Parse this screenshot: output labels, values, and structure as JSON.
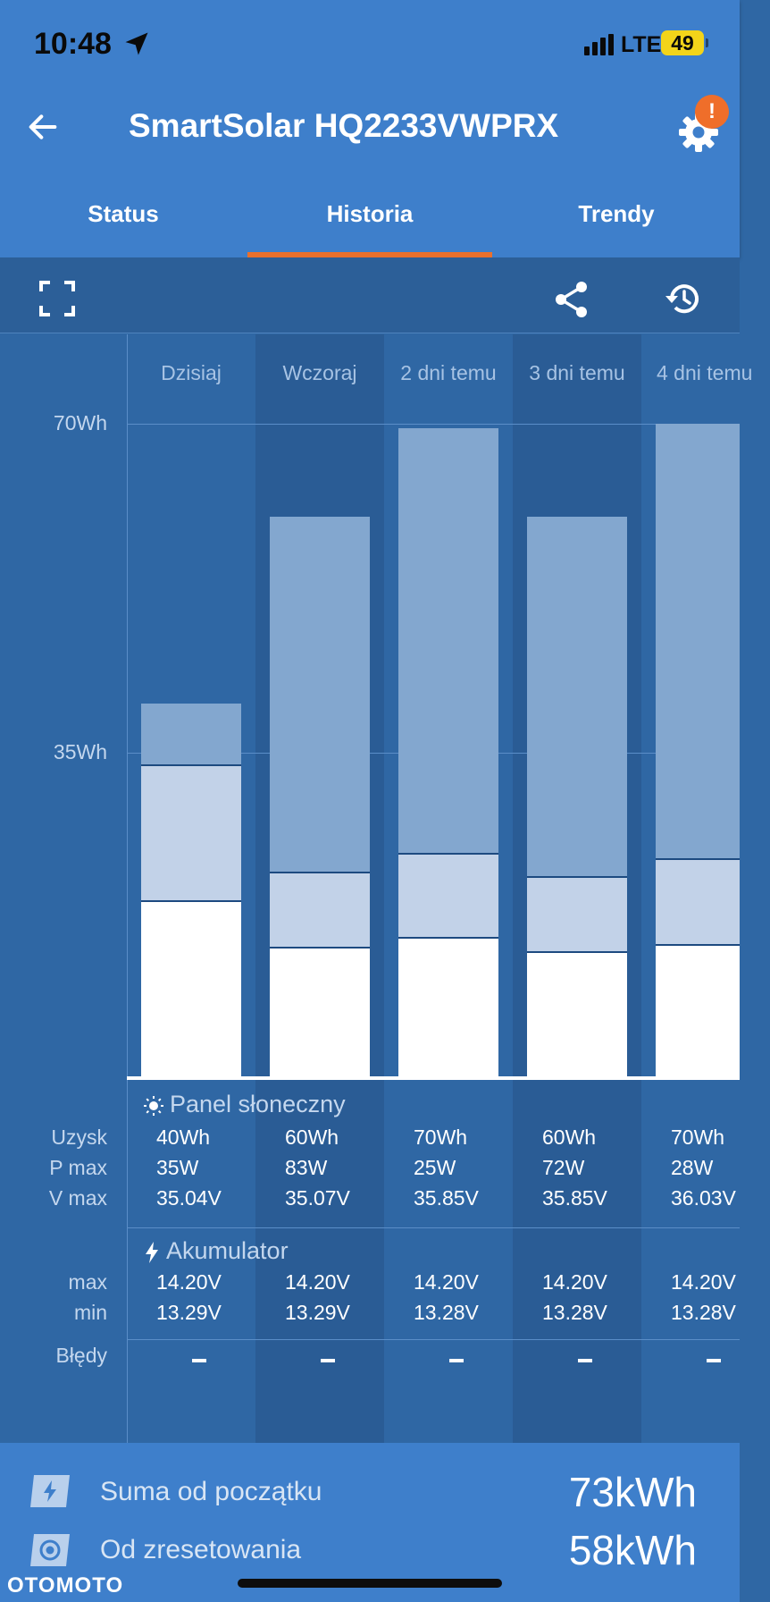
{
  "status_bar": {
    "time": "10:48",
    "network": "LTE",
    "battery": "49"
  },
  "header": {
    "title": "SmartSolar HQ2233VWPRX",
    "settings_badge": "!"
  },
  "tabs": [
    {
      "label": "Status",
      "active": false
    },
    {
      "label": "Historia",
      "active": true
    },
    {
      "label": "Trendy",
      "active": false
    }
  ],
  "toolbar": {
    "icons": [
      "fullscreen-icon",
      "share-icon",
      "history-icon"
    ]
  },
  "chart_data": {
    "type": "bar",
    "categories": [
      "Dzisiaj",
      "Wczoraj",
      "2 dni temu",
      "3 dni temu",
      "4 dni temu"
    ],
    "axis_labels": [
      "70Wh",
      "35Wh"
    ],
    "ylim": [
      0,
      70
    ],
    "stacked": true,
    "series": [
      {
        "values": [
          19,
          14,
          15,
          13.5,
          14.3
        ]
      },
      {
        "values": [
          14.5,
          8,
          9,
          8,
          9.2
        ]
      },
      {
        "values": [
          6.5,
          38,
          45.5,
          38.5,
          46.5
        ]
      }
    ],
    "colors": [
      "#ffffff",
      "#c2d2e8",
      "#83a7cf"
    ]
  },
  "solar": {
    "title": "Panel słoneczny",
    "rows": [
      {
        "label": "Uzysk",
        "values": [
          "40Wh",
          "60Wh",
          "70Wh",
          "60Wh",
          "70Wh"
        ]
      },
      {
        "label": "P max",
        "values": [
          "35W",
          "83W",
          "25W",
          "72W",
          "28W"
        ]
      },
      {
        "label": "V max",
        "values": [
          "35.04V",
          "35.07V",
          "35.85V",
          "35.85V",
          "36.03V"
        ]
      }
    ]
  },
  "battery": {
    "title": "Akumulator",
    "rows": [
      {
        "label": "max",
        "values": [
          "14.20V",
          "14.20V",
          "14.20V",
          "14.20V",
          "14.20V"
        ]
      },
      {
        "label": "min",
        "values": [
          "13.29V",
          "13.29V",
          "13.28V",
          "13.28V",
          "13.28V"
        ]
      }
    ]
  },
  "errors": {
    "label": "Błędy"
  },
  "footer": {
    "total_label": "Suma od początku",
    "total_value": "73kWh",
    "reset_label": "Od zresetowania",
    "reset_value": "58kWh"
  },
  "watermark": "OTOMOTO"
}
